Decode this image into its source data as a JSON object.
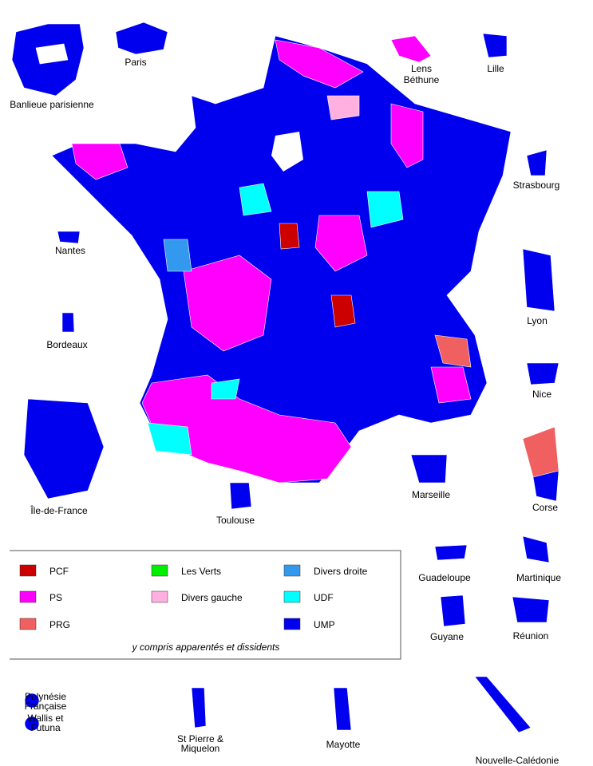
{
  "insets": [
    {
      "lines": [
        "Banlieue parisienne"
      ]
    },
    {
      "lines": [
        "Paris"
      ]
    },
    {
      "lines": [
        "Lens",
        "Béthune"
      ]
    },
    {
      "lines": [
        "Lille"
      ]
    },
    {
      "lines": [
        "Strasbourg"
      ]
    },
    {
      "lines": [
        "Nantes"
      ]
    },
    {
      "lines": [
        "Bordeaux"
      ]
    },
    {
      "lines": [
        "Lyon"
      ]
    },
    {
      "lines": [
        "Nice"
      ]
    },
    {
      "lines": [
        "Île-de-France"
      ]
    },
    {
      "lines": [
        "Toulouse"
      ]
    },
    {
      "lines": [
        "Marseille"
      ]
    },
    {
      "lines": [
        "Corse"
      ]
    },
    {
      "lines": [
        "Guadeloupe"
      ]
    },
    {
      "lines": [
        "Martinique"
      ]
    },
    {
      "lines": [
        "Guyane"
      ]
    },
    {
      "lines": [
        "Réunion"
      ]
    },
    {
      "lines": [
        "Polynésie",
        "Française"
      ]
    },
    {
      "lines": [
        "Wallis et",
        "Futuna"
      ]
    },
    {
      "lines": [
        "St Pierre &",
        "Miquelon"
      ]
    },
    {
      "lines": [
        "Mayotte"
      ]
    },
    {
      "lines": [
        "Nouvelle-Calédonie"
      ]
    }
  ],
  "legend": {
    "items": [
      {
        "label": "PCF",
        "color": "#cc0000"
      },
      {
        "label": "PS",
        "color": "#ff00ff"
      },
      {
        "label": "PRG",
        "color": "#f06060"
      },
      {
        "label": "Les Verts",
        "color": "#00ee00"
      },
      {
        "label": "Divers gauche",
        "color": "#ffb0e0"
      },
      {
        "label": "Divers droite",
        "color": "#3399ee"
      },
      {
        "label": "UDF",
        "color": "#00ffff"
      },
      {
        "label": "UMP",
        "color": "#0000ee"
      }
    ],
    "note": "y compris apparentés et dissidents"
  }
}
